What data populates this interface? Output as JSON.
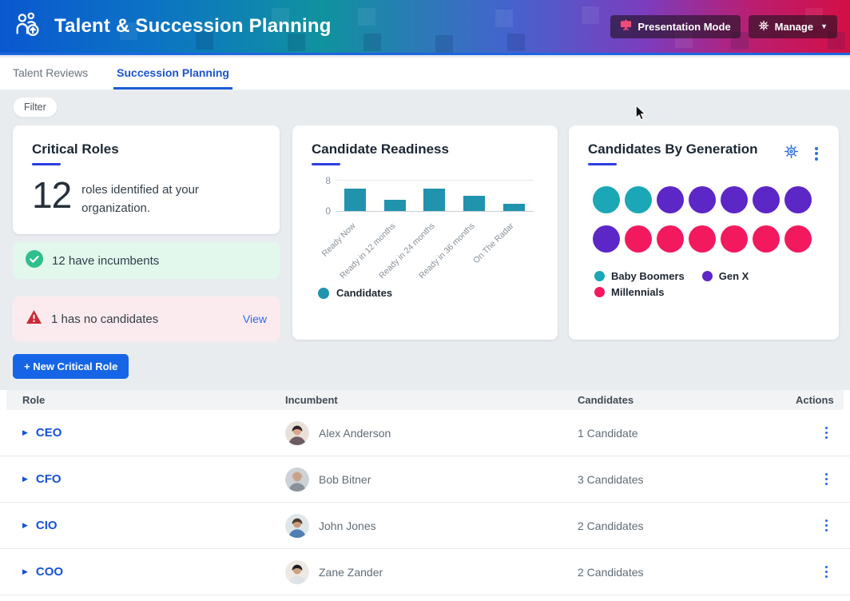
{
  "header": {
    "title": "Talent & Succession Planning",
    "presentation_button": "Presentation Mode",
    "manage_button": "Manage"
  },
  "tabs": [
    {
      "label": "Talent Reviews",
      "active": false
    },
    {
      "label": "Succession Planning",
      "active": true
    }
  ],
  "filter_label": "Filter",
  "critical_roles": {
    "title": "Critical Roles",
    "count": "12",
    "description": "roles identified at your organization.",
    "success_message": "12 have incumbents",
    "warning_message": "1 has no candidates",
    "warning_action": "View",
    "new_button_label": "+ New Critical Role"
  },
  "chart_data": [
    {
      "type": "bar",
      "title": "Candidate Readiness",
      "categories": [
        "Ready Now",
        "Ready in 12 months",
        "Ready in 24 months",
        "Ready in 36 months",
        "On The Radar"
      ],
      "series": [
        {
          "name": "Candidates",
          "color": "#2193ad",
          "values": [
            6,
            3,
            6,
            4,
            2
          ]
        }
      ],
      "xlabel": "",
      "ylabel": "",
      "ylim": [
        0,
        8
      ],
      "yticks": [
        "8",
        "0"
      ],
      "grid": "horizontal",
      "legend_position": "bottom-left"
    },
    {
      "type": "dot-matrix",
      "title": "Candidates By Generation",
      "columns": 7,
      "groups": [
        {
          "name": "Baby Boomers",
          "color": "#1ba7b5",
          "count": 2
        },
        {
          "name": "Gen X",
          "color": "#5d26c6",
          "count": 6
        },
        {
          "name": "Millennials",
          "color": "#f2195f",
          "count": 6
        }
      ],
      "legend_position": "bottom"
    }
  ],
  "table": {
    "columns": [
      "Role",
      "Incumbent",
      "Candidates",
      "Actions"
    ],
    "rows": [
      {
        "role": "CEO",
        "incumbent": "Alex Anderson",
        "candidates": "1 Candidate",
        "avatar": {
          "bg": "#e9e0da",
          "hair": "#2f2326",
          "skin": "#d9a68c",
          "shirt": "#6d5a63"
        }
      },
      {
        "role": "CFO",
        "incumbent": "Bob Bitner",
        "candidates": "3 Candidates",
        "avatar": {
          "bg": "#ccd2d6",
          "hair": "#c9a28b",
          "skin": "#c9a28b",
          "shirt": "#8a9299"
        }
      },
      {
        "role": "CIO",
        "incumbent": "John Jones",
        "candidates": "2 Candidates",
        "avatar": {
          "bg": "#dfe6ea",
          "hair": "#4a3b2e",
          "skin": "#c79b7d",
          "shirt": "#4f7fb5"
        }
      },
      {
        "role": "COO",
        "incumbent": "Zane Zander",
        "candidates": "2 Candidates",
        "avatar": {
          "bg": "#efe9e4",
          "hair": "#1f1d1f",
          "skin": "#caa183",
          "shirt": "#dfe2e6"
        }
      }
    ]
  },
  "icons": {
    "logo": "people-promotion-icon",
    "presentation": "presentation-screen-icon",
    "manage": "gear-icon",
    "manage_caret": "chevron-down-icon",
    "card_settings": "gear-icon",
    "card_menu": "kebab-menu-icon",
    "success": "check-circle-icon",
    "warning": "alert-triangle-icon",
    "row_expand": "chevron-right-icon",
    "row_actions": "kebab-menu-icon",
    "cursor": "mouse-pointer"
  },
  "colors": {
    "accent_blue": "#1565e6",
    "active_tab": "#1a55cc",
    "title_underline": "#2b3fe0",
    "link_blue": "#2b6cea",
    "success_bg": "#e2f8ed",
    "success_icon": "#2fbf8e",
    "warning_bg": "#fcebee",
    "warning_icon": "#cc2936",
    "bar_teal": "#2193ad",
    "dot_teal": "#1ba7b5",
    "dot_purple": "#5d26c6",
    "dot_pink": "#f2195f"
  }
}
